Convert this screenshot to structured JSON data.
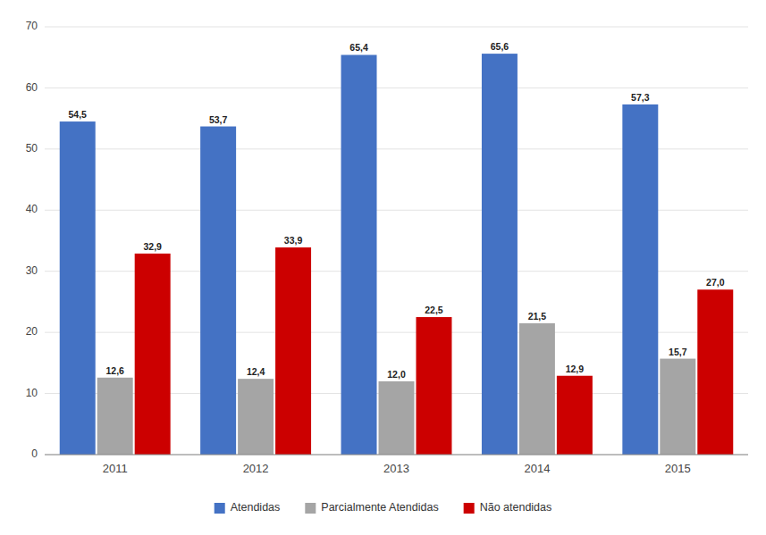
{
  "chart_data": {
    "type": "bar",
    "categories": [
      "2011",
      "2012",
      "2013",
      "2014",
      "2015"
    ],
    "series": [
      {
        "name": "Atendidas",
        "color": "#4472C4",
        "values": [
          54.5,
          53.7,
          65.4,
          65.6,
          57.3
        ],
        "value_labels": [
          "54,5",
          "53,7",
          "65,4",
          "65,6",
          "57,3"
        ]
      },
      {
        "name": "Parcialmente Atendidas",
        "color": "#A5A5A5",
        "values": [
          12.6,
          12.4,
          12.0,
          21.5,
          15.7
        ],
        "value_labels": [
          "12,6",
          "12,4",
          "12,0",
          "21,5",
          "15,7"
        ]
      },
      {
        "name": "Não atendidas",
        "color": "#CC0000",
        "values": [
          32.9,
          33.9,
          22.5,
          12.9,
          27.0
        ],
        "value_labels": [
          "32,9",
          "33,9",
          "22,5",
          "12,9",
          "27,0"
        ]
      }
    ],
    "ylim": [
      0,
      70
    ],
    "yticks": [
      0,
      10,
      20,
      30,
      40,
      50,
      60,
      70
    ],
    "grid": true,
    "legend": "bottom",
    "data_labels": true
  }
}
